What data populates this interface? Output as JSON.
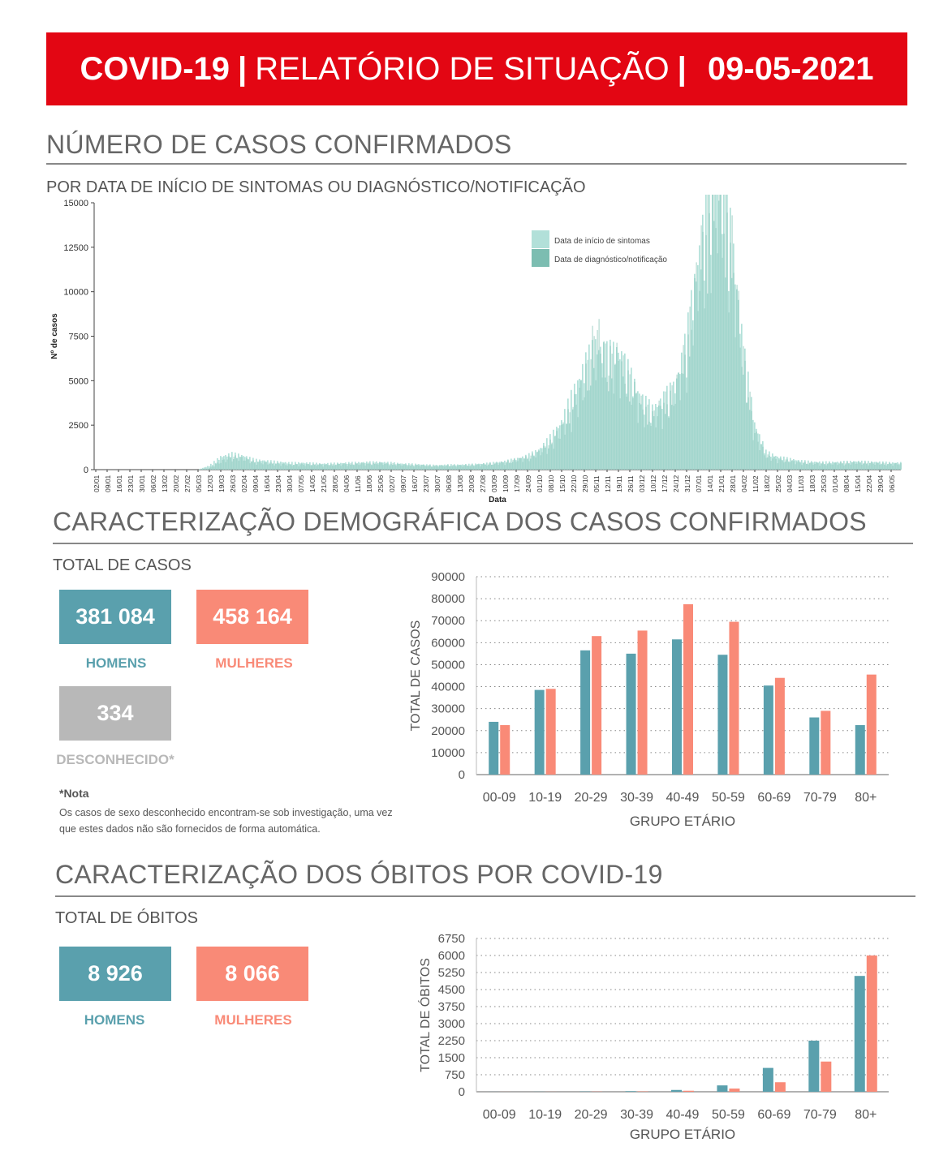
{
  "header": {
    "part1": "COVID-19",
    "separator": "|",
    "part2": "RELATÓRIO DE SITUAÇÃO",
    "date": "09-05-2021"
  },
  "cases_section": {
    "title": "NÚMERO DE CASOS CONFIRMADOS",
    "subtitle": "POR DATA DE INÍCIO DE SINTOMAS OU DIAGNÓSTICO/NOTIFICAÇÃO"
  },
  "demographic_section": {
    "title": "CARACTERIZAÇÃO DEMOGRÁFICA DOS CASOS CONFIRMADOS",
    "total_label": "TOTAL DE CASOS",
    "men_value": "381 084",
    "men_label": "HOMENS",
    "women_value": "458 164",
    "women_label": "MULHERES",
    "unknown_value": "334",
    "unknown_label": "DESCONHECIDO*",
    "note_title": "*Nota",
    "note_text": "Os casos de sexo desconhecido encontram-se sob investigação, uma vez que estes dados não são fornecidos de forma automática."
  },
  "deaths_section": {
    "title": "CARACTERIZAÇÃO DOS ÓBITOS POR COVID-19",
    "total_label": "TOTAL DE ÓBITOS",
    "men_value": "8 926",
    "men_label": "HOMENS",
    "women_value": "8 066",
    "women_label": "MULHERES"
  },
  "colors": {
    "banner": "#e30613",
    "men": "#5aa0ad",
    "women": "#f98a77",
    "unknown": "#b8b8b8",
    "symptoms": "#b2e0d9",
    "diagnosis": "#7cbdb1"
  },
  "chart_data": [
    {
      "type": "bar",
      "xlabel": "Data",
      "ylabel": "Nº de casos",
      "ylim": [
        0,
        15000
      ],
      "yticks": [
        "0",
        "2500",
        "5000",
        "7500",
        "10000",
        "12500",
        "15000"
      ],
      "legend_position": "top-right",
      "categories": [
        "02/01",
        "09/01",
        "16/01",
        "23/01",
        "30/01",
        "06/02",
        "13/02",
        "20/02",
        "27/02",
        "05/03",
        "12/03",
        "19/03",
        "26/03",
        "02/04",
        "09/04",
        "16/04",
        "23/04",
        "30/04",
        "07/05",
        "14/05",
        "21/05",
        "28/05",
        "04/06",
        "11/06",
        "18/06",
        "25/06",
        "02/07",
        "09/07",
        "16/07",
        "23/07",
        "30/07",
        "06/08",
        "13/08",
        "20/08",
        "27/08",
        "03/09",
        "10/09",
        "17/09",
        "24/09",
        "01/10",
        "08/10",
        "15/10",
        "22/10",
        "29/10",
        "05/11",
        "12/11",
        "19/11",
        "26/11",
        "03/12",
        "10/12",
        "17/12",
        "24/12",
        "31/12",
        "07/01",
        "14/01",
        "21/01",
        "28/01",
        "04/02",
        "11/02",
        "18/02",
        "25/02",
        "04/03",
        "11/03",
        "18/03",
        "25/03",
        "01/04",
        "08/04",
        "15/04",
        "22/04",
        "29/04",
        "06/05"
      ],
      "series": [
        {
          "name": "Data de início de sintomas",
          "values": [
            0,
            0,
            0,
            0,
            0,
            0,
            0,
            0,
            0,
            0,
            200,
            650,
            800,
            700,
            500,
            450,
            400,
            350,
            350,
            330,
            300,
            320,
            340,
            360,
            380,
            380,
            350,
            300,
            280,
            250,
            220,
            250,
            250,
            270,
            300,
            350,
            420,
            550,
            700,
            1000,
            1600,
            2400,
            3800,
            5200,
            6200,
            5800,
            6000,
            4800,
            3600,
            3000,
            3600,
            4200,
            6500,
            10500,
            13500,
            14500,
            11500,
            6000,
            2300,
            900,
            650,
            550,
            450,
            400,
            380,
            380,
            400,
            420,
            400,
            380,
            350
          ]
        },
        {
          "name": "Data de diagnóstico/notificação",
          "values": [
            0,
            0,
            0,
            0,
            0,
            0,
            0,
            0,
            0,
            0,
            80,
            400,
            650,
            550,
            380,
            330,
            290,
            250,
            260,
            260,
            240,
            260,
            280,
            290,
            310,
            320,
            290,
            250,
            230,
            210,
            190,
            210,
            210,
            230,
            260,
            300,
            370,
            480,
            600,
            850,
            1300,
            2000,
            3100,
            4300,
            7000,
            5400,
            5500,
            4300,
            3200,
            2600,
            3300,
            3900,
            6000,
            9800,
            13000,
            14000,
            11000,
            5500,
            1800,
            700,
            500,
            450,
            350,
            320,
            300,
            310,
            330,
            350,
            330,
            310,
            290
          ]
        }
      ]
    },
    {
      "type": "bar",
      "xlabel": "GRUPO ETÁRIO",
      "ylabel": "TOTAL DE CASOS",
      "ylim": [
        0,
        90000
      ],
      "yticks": [
        "0",
        "10000",
        "20000",
        "30000",
        "40000",
        "50000",
        "60000",
        "70000",
        "80000",
        "90000"
      ],
      "categories": [
        "00-09",
        "10-19",
        "20-29",
        "30-39",
        "40-49",
        "50-59",
        "60-69",
        "70-79",
        "80+"
      ],
      "series": [
        {
          "name": "HOMENS",
          "values": [
            24000,
            38500,
            56500,
            55000,
            61500,
            54500,
            40500,
            26000,
            22500
          ]
        },
        {
          "name": "MULHERES",
          "values": [
            22500,
            39000,
            63000,
            65500,
            77500,
            69500,
            44000,
            29000,
            45500
          ]
        }
      ]
    },
    {
      "type": "bar",
      "xlabel": "GRUPO ETÁRIO",
      "ylabel": "TOTAL DE ÓBITOS",
      "ylim": [
        0,
        6750
      ],
      "yticks": [
        "0",
        "750",
        "1500",
        "2250",
        "3000",
        "3750",
        "4500",
        "5250",
        "6000",
        "6750"
      ],
      "categories": [
        "00-09",
        "10-19",
        "20-29",
        "30-39",
        "40-49",
        "50-59",
        "60-69",
        "70-79",
        "80+"
      ],
      "series": [
        {
          "name": "HOMENS",
          "values": [
            3,
            5,
            12,
            25,
            80,
            280,
            1050,
            2250,
            5100
          ]
        },
        {
          "name": "MULHERES",
          "values": [
            2,
            3,
            8,
            15,
            45,
            140,
            420,
            1330,
            6000
          ]
        }
      ]
    }
  ]
}
